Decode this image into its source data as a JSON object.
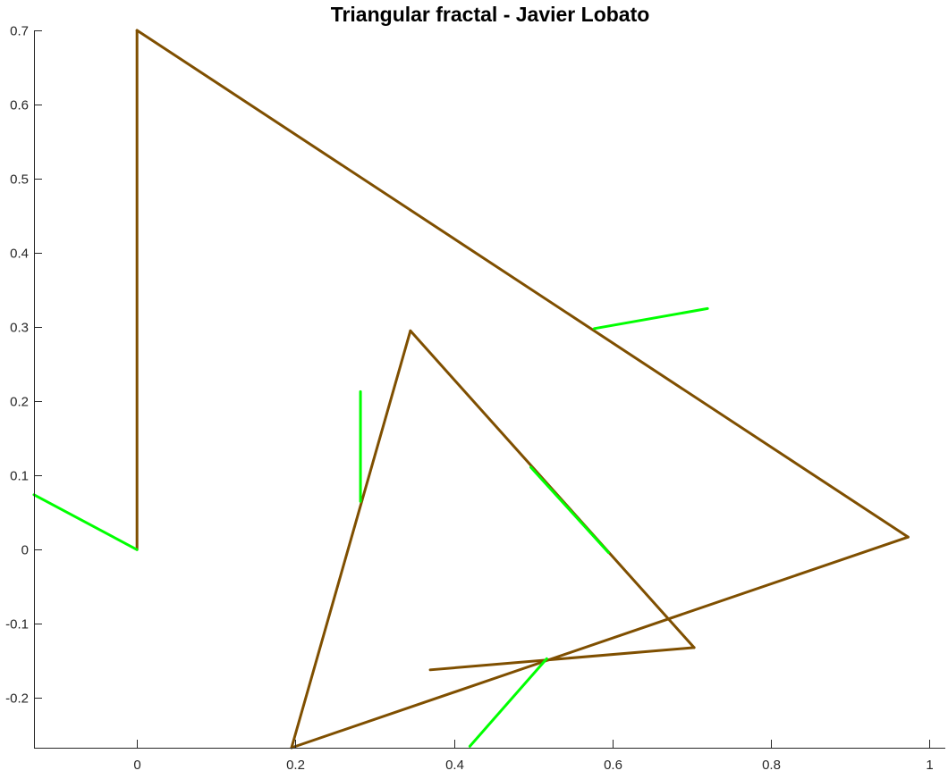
{
  "chart_data": {
    "type": "line",
    "title": "Triangular fractal - Javier Lobato",
    "xlabel": "",
    "ylabel": "",
    "xlim": [
      -0.13,
      1.02
    ],
    "ylim": [
      -0.267,
      0.7
    ],
    "x_ticks": [
      0,
      0.2,
      0.4,
      0.6,
      0.8,
      1
    ],
    "x_tick_labels": [
      "0",
      "0.2",
      "0.4",
      "0.6",
      "0.8",
      "1"
    ],
    "y_ticks": [
      0.7,
      0.6,
      0.5,
      0.4,
      0.3,
      0.2,
      0.1,
      0,
      -0.1,
      -0.2
    ],
    "y_tick_labels": [
      "0.7",
      "0.6",
      "0.5",
      "0.4",
      "0.3",
      "0.2",
      "0.1",
      "0",
      "-0.1",
      "-0.2"
    ],
    "grid": false,
    "box": false,
    "colors": {
      "triangle": "#7f4f00",
      "branch": "#00ff00",
      "axis": "#262626"
    },
    "series": [
      {
        "color": "#7f4f00",
        "segments": [
          {
            "x": [
              0,
              0
            ],
            "y": [
              0,
              0.7
            ]
          },
          {
            "x": [
              0,
              0.973
            ],
            "y": [
              0.7,
              0.017
            ]
          },
          {
            "x": [
              0.973,
              0.195
            ],
            "y": [
              0.017,
              -0.267
            ]
          },
          {
            "x": [
              0.195,
              0.345
            ],
            "y": [
              -0.267,
              0.295
            ]
          },
          {
            "x": [
              0.345,
              0.703
            ],
            "y": [
              0.295,
              -0.132
            ]
          },
          {
            "x": [
              0.703,
              0.37
            ],
            "y": [
              -0.132,
              -0.162
            ]
          }
        ]
      },
      {
        "color": "#00ff00",
        "segments": [
          {
            "x": [
              -0.13,
              0
            ],
            "y": [
              0.074,
              0
            ]
          },
          {
            "x": [
              0.282,
              0.282
            ],
            "y": [
              0.213,
              0.065
            ]
          },
          {
            "x": [
              0.577,
              0.72
            ],
            "y": [
              0.298,
              0.325
            ]
          },
          {
            "x": [
              0.497,
              0.595
            ],
            "y": [
              0.111,
              -0.004
            ]
          },
          {
            "x": [
              0.517,
              0.42
            ],
            "y": [
              -0.147,
              -0.265
            ]
          }
        ]
      }
    ]
  }
}
